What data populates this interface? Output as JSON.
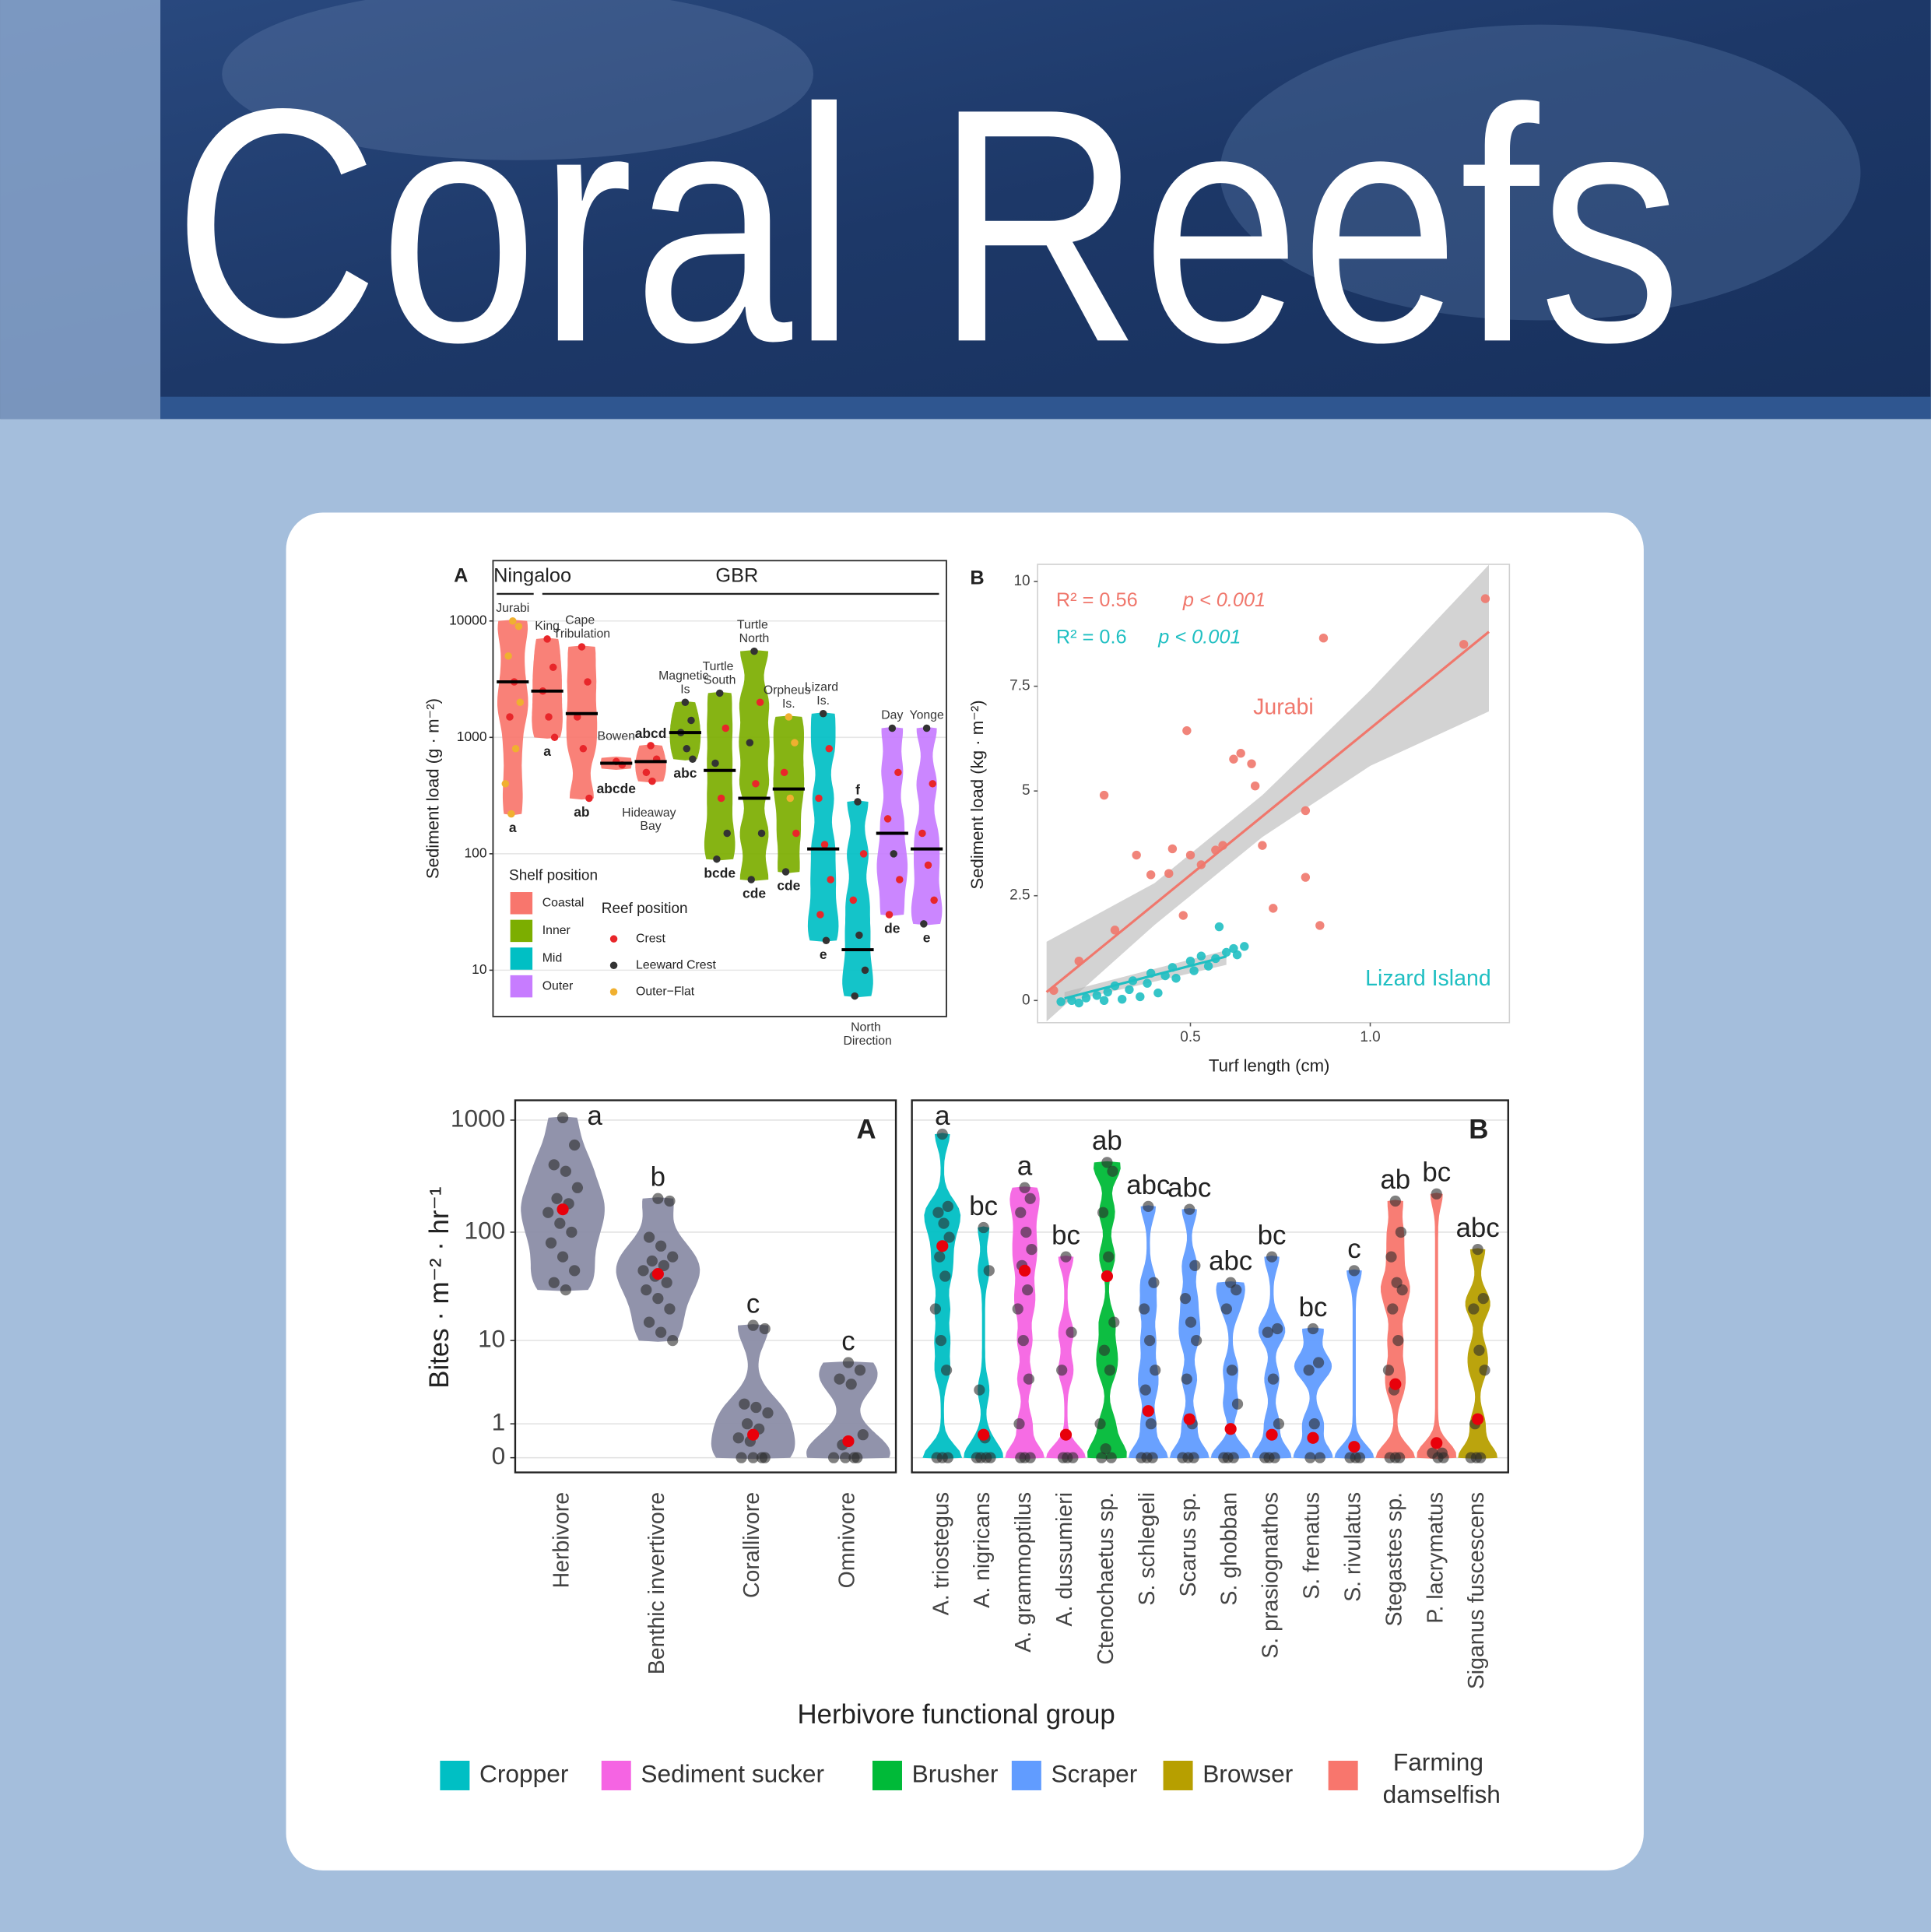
{
  "header": {
    "title": "Coral Reefs"
  },
  "chart_data": [
    {
      "type": "site-violin",
      "panel_label": "A",
      "regions": [
        "Ningaloo",
        "GBR"
      ],
      "y_label": "Sediment load (g · m⁻²)",
      "yscale": "log",
      "ylim": [
        4,
        33000
      ],
      "yticks": [
        10,
        100,
        1000,
        10000
      ],
      "grid": true,
      "shelf_legend": {
        "title": "Shelf position",
        "items": [
          {
            "name": "Coastal",
            "color": "#f8766d"
          },
          {
            "name": "Inner",
            "color": "#7cae00"
          },
          {
            "name": "Mid",
            "color": "#00bfc4"
          },
          {
            "name": "Outer",
            "color": "#c77cff"
          }
        ]
      },
      "reef_legend": {
        "title": "Reef position",
        "items": [
          {
            "name": "Crest",
            "color": "#e8262a"
          },
          {
            "name": "Leeward Crest",
            "color": "#333333"
          },
          {
            "name": "Outer−Flat",
            "color": "#f0b030"
          }
        ]
      },
      "sites": [
        {
          "name": "Jurabi",
          "shelf": 0,
          "letters": "a",
          "median": 3000,
          "points": [
            [
              10000,
              2
            ],
            [
              9000,
              2
            ],
            [
              5000,
              2
            ],
            [
              3000,
              0
            ],
            [
              2000,
              2
            ],
            [
              1500,
              0
            ],
            [
              800,
              2
            ],
            [
              400,
              2
            ],
            [
              220,
              2
            ]
          ]
        },
        {
          "name": "King",
          "shelf": 0,
          "letters": "a",
          "median": 2500,
          "points": [
            [
              7000,
              0
            ],
            [
              4000,
              0
            ],
            [
              2500,
              0
            ],
            [
              1500,
              0
            ],
            [
              1000,
              0
            ]
          ]
        },
        {
          "name": "Cape Tribulation",
          "shelf": 0,
          "letters": "ab",
          "median": 1600,
          "points": [
            [
              6000,
              0
            ],
            [
              3000,
              0
            ],
            [
              1500,
              0
            ],
            [
              800,
              0
            ],
            [
              300,
              0
            ]
          ]
        },
        {
          "name": "Bowen",
          "shelf": 0,
          "letters": "abcde",
          "median": 600,
          "points": [
            [
              620,
              0
            ],
            [
              580,
              0
            ]
          ]
        },
        {
          "name": "Hideaway Bay",
          "shelf": 0,
          "letters": "abcd",
          "median": 620,
          "points": [
            [
              850,
              0
            ],
            [
              650,
              0
            ],
            [
              500,
              0
            ],
            [
              420,
              0
            ]
          ]
        },
        {
          "name": "Magnetic Is",
          "shelf": 1,
          "letters": "abc",
          "median": 1100,
          "points": [
            [
              2000,
              1
            ],
            [
              1400,
              1
            ],
            [
              1100,
              1
            ],
            [
              800,
              1
            ],
            [
              650,
              1
            ]
          ]
        },
        {
          "name": "Turtle South",
          "shelf": 1,
          "letters": "bcde",
          "median": 520,
          "points": [
            [
              2400,
              1
            ],
            [
              1200,
              0
            ],
            [
              600,
              1
            ],
            [
              300,
              0
            ],
            [
              150,
              1
            ],
            [
              90,
              1
            ]
          ]
        },
        {
          "name": "Turtle North",
          "shelf": 1,
          "letters": "cde",
          "median": 300,
          "points": [
            [
              5500,
              1
            ],
            [
              2000,
              0
            ],
            [
              900,
              1
            ],
            [
              400,
              0
            ],
            [
              150,
              1
            ],
            [
              60,
              1
            ]
          ]
        },
        {
          "name": "Orpheus Is.",
          "shelf": 1,
          "letters": "cde",
          "median": 360,
          "points": [
            [
              1500,
              2
            ],
            [
              900,
              2
            ],
            [
              500,
              0
            ],
            [
              300,
              2
            ],
            [
              150,
              0
            ],
            [
              70,
              1
            ]
          ]
        },
        {
          "name": "Lizard Is.",
          "shelf": 2,
          "letters": "e",
          "median": 110,
          "points": [
            [
              1600,
              1
            ],
            [
              800,
              0
            ],
            [
              300,
              0
            ],
            [
              120,
              0
            ],
            [
              60,
              0
            ],
            [
              30,
              0
            ],
            [
              18,
              1
            ]
          ]
        },
        {
          "name": "North Direction",
          "shelf": 2,
          "letters": "f",
          "median": 15,
          "points": [
            [
              280,
              1
            ],
            [
              100,
              0
            ],
            [
              40,
              0
            ],
            [
              20,
              1
            ],
            [
              10,
              1
            ],
            [
              6,
              1
            ]
          ]
        },
        {
          "name": "Day",
          "shelf": 3,
          "letters": "de",
          "median": 150,
          "points": [
            [
              1200,
              1
            ],
            [
              500,
              0
            ],
            [
              200,
              0
            ],
            [
              100,
              1
            ],
            [
              60,
              0
            ],
            [
              30,
              0
            ]
          ]
        },
        {
          "name": "Yonge",
          "shelf": 3,
          "letters": "e",
          "median": 110,
          "points": [
            [
              1200,
              1
            ],
            [
              400,
              0
            ],
            [
              150,
              0
            ],
            [
              80,
              0
            ],
            [
              40,
              0
            ],
            [
              25,
              1
            ]
          ]
        }
      ]
    },
    {
      "type": "scatter",
      "panel_label": "B",
      "x_label": "Turf length (cm)",
      "y_label": "Sediment load (kg · m⁻²)",
      "xlim": [
        0.075,
        1.387
      ],
      "ylim": [
        -0.53,
        10.41
      ],
      "xticks": [
        0.5,
        {
          "value": 1,
          "label": "1.0"
        }
      ],
      "yticks": [
        0,
        2.5,
        5,
        7.5,
        10
      ],
      "series": [
        {
          "name": "Jurabi",
          "color": "#f0776c",
          "r2_label": "R² = 0.56",
          "p_label": "p < 0.001",
          "x": [
            1.32,
            1.26,
            0.87,
            0.67,
            0.62,
            0.64,
            0.49,
            0.26,
            0.82,
            0.68,
            0.35,
            0.45,
            0.5,
            0.39,
            0.44,
            0.57,
            0.59,
            0.53,
            0.7,
            0.82,
            0.86,
            0.73,
            0.48,
            0.29,
            0.19,
            0.12
          ],
          "values": [
            9.59,
            8.5,
            8.65,
            5.65,
            5.76,
            5.9,
            6.44,
            4.9,
            4.53,
            5.12,
            3.47,
            3.62,
            3.47,
            3.0,
            3.03,
            3.59,
            3.7,
            3.24,
            3.7,
            2.94,
            1.79,
            2.2,
            2.03,
            1.68,
            0.94,
            0.24
          ],
          "fit": {
            "x": [
              0.1,
              1.33
            ],
            "y": [
              0.2,
              8.8
            ]
          },
          "ci": {
            "x": [
              0.1,
              0.4,
              0.7,
              1.0,
              1.33
            ],
            "lower": [
              -0.5,
              1.8,
              3.9,
              5.6,
              6.9
            ],
            "upper": [
              1.4,
              2.8,
              4.9,
              7.4,
              10.4
            ]
          }
        },
        {
          "name": "Lizard Island",
          "color": "#1fbfc2",
          "r2_label": "R² = 0.6",
          "p_label": "p < 0.001",
          "x": [
            0.14,
            0.17,
            0.21,
            0.24,
            0.27,
            0.29,
            0.33,
            0.34,
            0.38,
            0.39,
            0.43,
            0.45,
            0.46,
            0.5,
            0.51,
            0.53,
            0.55,
            0.57,
            0.58,
            0.6,
            0.62,
            0.63,
            0.65,
            0.19,
            0.26,
            0.31,
            0.36,
            0.41
          ],
          "values": [
            -0.03,
            0,
            0.06,
            0.12,
            0.2,
            0.35,
            0.26,
            0.47,
            0.41,
            0.65,
            0.59,
            0.79,
            0.53,
            0.94,
            0.71,
            1.06,
            0.82,
            1.0,
            1.76,
            1.15,
            1.24,
            1.09,
            1.29,
            -0.06,
            0,
            0.03,
            0.09,
            0.18
          ],
          "fit": {
            "x": [
              0.15,
              0.6
            ],
            "y": [
              0.05,
              1.05
            ]
          },
          "ci": {
            "x": [
              0.15,
              0.6
            ],
            "lower": [
              -0.05,
              0.85
            ],
            "upper": [
              0.2,
              1.2
            ]
          }
        }
      ]
    },
    {
      "type": "bite-violin",
      "panel_label": "A",
      "y_label": "Bites · m⁻² · hr⁻¹",
      "yscale": "log1p",
      "ylim": [
        -0.26,
        1500
      ],
      "yticks": [
        0,
        1,
        10,
        100,
        1000
      ],
      "grid": true,
      "color": "#8b8da6",
      "categories": [
        "Herbivore",
        "Benthic invertivore",
        "Corallivore",
        "Omnivore"
      ],
      "letters": [
        "a",
        "b",
        "c",
        "c"
      ],
      "means": [
        160,
        42,
        0.6,
        0.4
      ],
      "points": [
        [
          1050,
          600,
          400,
          350,
          250,
          200,
          180,
          150,
          120,
          100,
          80,
          60,
          45,
          35,
          30
        ],
        [
          200,
          190,
          90,
          75,
          60,
          55,
          50,
          45,
          40,
          35,
          30,
          25,
          20,
          15,
          12,
          10
        ],
        [
          14,
          13,
          2,
          1.8,
          1.5,
          1,
          0.8,
          0.5,
          0.4,
          0,
          0,
          0,
          0
        ],
        [
          6,
          5,
          4,
          3.5,
          0.6,
          0.3,
          0,
          0,
          0,
          0
        ]
      ]
    },
    {
      "type": "bite-violin",
      "panel_label": "B",
      "x_label": "Herbivore functional group",
      "yscale": "log1p",
      "ylim": [
        -0.26,
        1500
      ],
      "yticks": [
        0,
        1,
        10,
        100,
        1000
      ],
      "grid": true,
      "groups": [
        {
          "name": "Cropper",
          "color": "#00bfc4"
        },
        {
          "name": "Sediment sucker",
          "color": "#f564e3"
        },
        {
          "name": "Brusher",
          "color": "#00ba38"
        },
        {
          "name": "Scraper",
          "color": "#619cff"
        },
        {
          "name": "Browser",
          "color": "#b79f00"
        },
        {
          "name": "Farming damselfish",
          "color": "#f8766d"
        }
      ],
      "categories": [
        "A. triostegus",
        "A. nigricans",
        "A. grammoptilus",
        "A. dussumieri",
        "Ctenochaetus sp.",
        "S. schlegeli",
        "Scarus sp.",
        "S. ghobban",
        "S. prasiognathos",
        "S. frenatus",
        "S. rivulatus",
        "Stegastes sp.",
        "P. lacrymatus",
        "Siganus fuscescens"
      ],
      "category_groups": [
        0,
        0,
        1,
        1,
        2,
        3,
        3,
        3,
        3,
        3,
        3,
        5,
        5,
        4
      ],
      "letters": [
        "a",
        "bc",
        "a",
        "bc",
        "ab",
        "abc",
        "abc",
        "abc",
        "bc",
        "bc",
        "c",
        "ab",
        "bc",
        "abc"
      ],
      "means": [
        75,
        0.6,
        45,
        0.6,
        40,
        1.6,
        1.2,
        0.8,
        0.6,
        0.5,
        0.25,
        3.5,
        0.35,
        1.2
      ],
      "points": [
        [
          750,
          170,
          150,
          120,
          90,
          60,
          40,
          20,
          10,
          5,
          0,
          0,
          0
        ],
        [
          110,
          45,
          3,
          0.5,
          0,
          0,
          0,
          0
        ],
        [
          250,
          200,
          150,
          100,
          70,
          50,
          30,
          20,
          10,
          4,
          1,
          0,
          0,
          0
        ],
        [
          60,
          12,
          5,
          0,
          0,
          0
        ],
        [
          420,
          350,
          150,
          60,
          15,
          8,
          5,
          1,
          0.2,
          0,
          0
        ],
        [
          170,
          35,
          20,
          10,
          5,
          3,
          1,
          0,
          0,
          0
        ],
        [
          160,
          50,
          25,
          15,
          10,
          4,
          1,
          0,
          0,
          0
        ],
        [
          35,
          30,
          20,
          5,
          2,
          0,
          0,
          0
        ],
        [
          60,
          13,
          12,
          4,
          1,
          0,
          0,
          0
        ],
        [
          13,
          6,
          5,
          1,
          0,
          0
        ],
        [
          45,
          0,
          0,
          0
        ],
        [
          190,
          100,
          60,
          35,
          30,
          20,
          10,
          5,
          3,
          0,
          0,
          0
        ],
        [
          220,
          0.1,
          0.1,
          0,
          0
        ],
        [
          70,
          25,
          20,
          8,
          5,
          1,
          0,
          0,
          0
        ]
      ]
    }
  ]
}
